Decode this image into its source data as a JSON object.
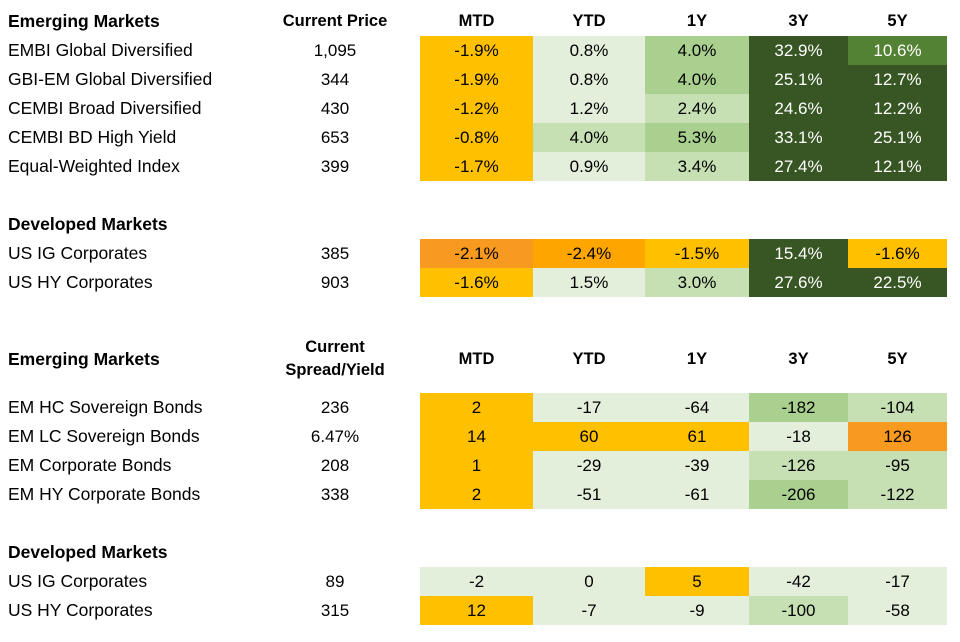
{
  "section1": {
    "title": "Emerging Markets",
    "col_price": "Current Price",
    "cols": [
      "MTD",
      "YTD",
      "1Y",
      "3Y",
      "5Y"
    ],
    "rows": [
      {
        "name": "EMBI Global Diversified",
        "price": "1,095",
        "vals": [
          "-1.9%",
          "0.8%",
          "4.0%",
          "32.9%",
          "10.6%"
        ]
      },
      {
        "name": "GBI-EM Global Diversified",
        "price": "344",
        "vals": [
          "-1.9%",
          "0.8%",
          "4.0%",
          "25.1%",
          "12.7%"
        ]
      },
      {
        "name": "CEMBI Broad Diversified",
        "price": "430",
        "vals": [
          "-1.2%",
          "1.2%",
          "2.4%",
          "24.6%",
          "12.2%"
        ]
      },
      {
        "name": "CEMBI BD High Yield",
        "price": "653",
        "vals": [
          "-0.8%",
          "4.0%",
          "5.3%",
          "33.1%",
          "25.1%"
        ]
      },
      {
        "name": "Equal-Weighted Index",
        "price": "399",
        "vals": [
          "-1.7%",
          "0.9%",
          "3.4%",
          "27.4%",
          "12.1%"
        ]
      }
    ]
  },
  "section2": {
    "title": "Developed Markets",
    "rows": [
      {
        "name": "US IG Corporates",
        "price": "385",
        "vals": [
          "-2.1%",
          "-2.4%",
          "-1.5%",
          "15.4%",
          "-1.6%"
        ]
      },
      {
        "name": "US HY Corporates",
        "price": "903",
        "vals": [
          "-1.6%",
          "1.5%",
          "3.0%",
          "27.6%",
          "22.5%"
        ]
      }
    ]
  },
  "section3": {
    "title": "Emerging Markets",
    "col_spread_line1": "Current",
    "col_spread_line2": "Spread/Yield",
    "cols": [
      "MTD",
      "YTD",
      "1Y",
      "3Y",
      "5Y"
    ],
    "rows": [
      {
        "name": "EM HC Sovereign Bonds",
        "price": "236",
        "vals": [
          "2",
          "-17",
          "-64",
          "-182",
          "-104"
        ]
      },
      {
        "name": "EM LC Sovereign Bonds",
        "price": "6.47%",
        "vals": [
          "14",
          "60",
          "61",
          "-18",
          "126"
        ]
      },
      {
        "name": "EM Corporate Bonds",
        "price": "208",
        "vals": [
          "1",
          "-29",
          "-39",
          "-126",
          "-95"
        ]
      },
      {
        "name": "EM HY Corporate Bonds",
        "price": "338",
        "vals": [
          "2",
          "-51",
          "-61",
          "-206",
          "-122"
        ]
      }
    ]
  },
  "section4": {
    "title": "Developed Markets",
    "rows": [
      {
        "name": "US IG Corporates",
        "price": "89",
        "vals": [
          "-2",
          "0",
          "5",
          "-42",
          "-17"
        ]
      },
      {
        "name": "US HY Corporates",
        "price": "315",
        "vals": [
          "12",
          "-7",
          "-9",
          "-100",
          "-58"
        ]
      }
    ]
  },
  "colors": {
    "gold": "#ffc000",
    "orange": "#ffa500",
    "dark_orange": "#f79a1f",
    "pale_green": "#e3efda",
    "light_green": "#c6e0b4",
    "mid_green": "#a9d08e",
    "green": "#548235",
    "dark_green": "#375623"
  },
  "cell_fills": {
    "section1": [
      [
        "gold",
        "pale_green",
        "mid_green",
        "dark_green",
        "green"
      ],
      [
        "gold",
        "pale_green",
        "mid_green",
        "dark_green",
        "dark_green"
      ],
      [
        "gold",
        "pale_green",
        "light_green",
        "dark_green",
        "dark_green"
      ],
      [
        "gold",
        "light_green",
        "mid_green",
        "dark_green",
        "dark_green"
      ],
      [
        "gold",
        "pale_green",
        "light_green",
        "dark_green",
        "dark_green"
      ]
    ],
    "section2": [
      [
        "dark_orange",
        "orange",
        "gold",
        "dark_green",
        "gold"
      ],
      [
        "gold",
        "pale_green",
        "light_green",
        "dark_green",
        "dark_green"
      ]
    ],
    "section3": [
      [
        "gold",
        "pale_green",
        "pale_green",
        "mid_green",
        "light_green"
      ],
      [
        "gold",
        "gold",
        "gold",
        "pale_green",
        "dark_orange"
      ],
      [
        "gold",
        "pale_green",
        "pale_green",
        "light_green",
        "light_green"
      ],
      [
        "gold",
        "pale_green",
        "pale_green",
        "mid_green",
        "light_green"
      ]
    ],
    "section4": [
      [
        "pale_green",
        "pale_green",
        "gold",
        "pale_green",
        "pale_green"
      ],
      [
        "gold",
        "pale_green",
        "pale_green",
        "light_green",
        "pale_green"
      ]
    ]
  }
}
